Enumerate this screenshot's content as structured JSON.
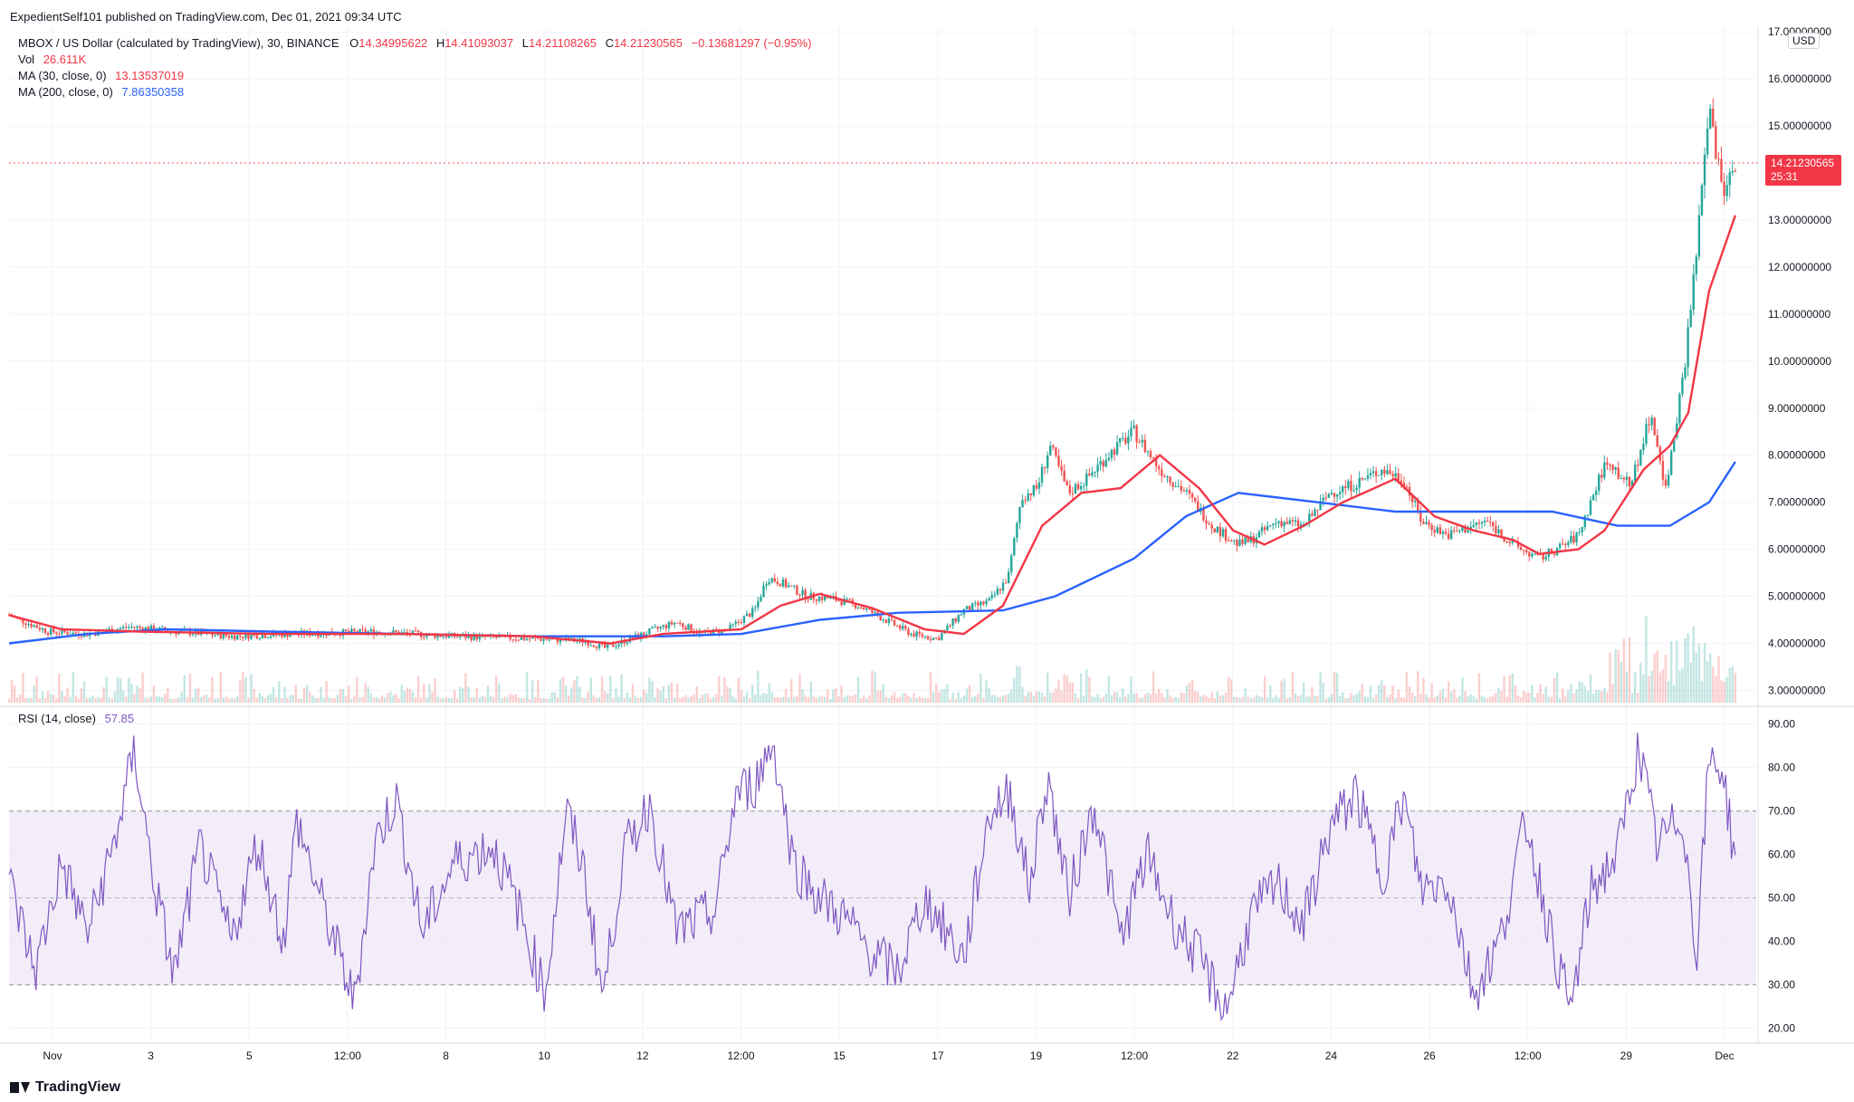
{
  "header": {
    "publisher_line": "ExpedientSelf101 published on TradingView.com, Dec 01, 2021 09:34 UTC",
    "symbol": "MBOX / US Dollar (calculated by TradingView), 30, BINANCE",
    "ohlc": {
      "o_label": "O",
      "o": "14.34995622",
      "h_label": "H",
      "h": "14.41093037",
      "l_label": "L",
      "l": "14.21108265",
      "c_label": "C",
      "c": "14.21230565",
      "change": "−0.13681297 (−0.95%)"
    },
    "vol_label": "Vol",
    "vol_value": "26.611K",
    "ma30_label": "MA (30, close, 0)",
    "ma30_value": "13.13537019",
    "ma200_label": "MA (200, close, 0)",
    "ma200_value": "7.86350358"
  },
  "rsi_header": {
    "label": "RSI (14, close)",
    "value": "57.85"
  },
  "currency_button": "USD",
  "last_price_tag": {
    "price": "14.21230565",
    "countdown": "25:31"
  },
  "brand": "TradingView",
  "colors": {
    "up": "#26a69a",
    "down": "#ef5350",
    "ma30": "#f23645",
    "ma200": "#2962ff",
    "rsi": "#7e57c2",
    "rsi_band": "#ede7f6",
    "grid": "#f0f3fa"
  },
  "chart_data": [
    {
      "type": "candlestick",
      "title": "MBOX / US Dollar (calculated by TradingView), 30, BINANCE",
      "y_axis": {
        "min": 2.7,
        "max": 17.1,
        "ticks": [
          "3.00000000",
          "4.00000000",
          "5.00000000",
          "6.00000000",
          "7.00000000",
          "8.00000000",
          "9.00000000",
          "10.00000000",
          "11.00000000",
          "12.00000000",
          "13.00000000",
          "15.00000000",
          "16.00000000",
          "17.00000000"
        ]
      },
      "x_axis": {
        "ticks": [
          "Nov",
          "3",
          "5",
          "12:00",
          "8",
          "10",
          "12",
          "12:00",
          "15",
          "17",
          "19",
          "12:00",
          "22",
          "24",
          "26",
          "12:00",
          "29",
          "Dec"
        ]
      },
      "last_price": 14.2123,
      "price_path": [
        {
          "x": 0,
          "y": 4.6
        },
        {
          "x": 1.5,
          "y": 4.25
        },
        {
          "x": 3,
          "y": 4.2
        },
        {
          "x": 4.6,
          "y": 4.35
        },
        {
          "x": 6.5,
          "y": 4.25
        },
        {
          "x": 8.5,
          "y": 4.15
        },
        {
          "x": 11,
          "y": 4.2
        },
        {
          "x": 14,
          "y": 4.25
        },
        {
          "x": 17,
          "y": 4.15
        },
        {
          "x": 20,
          "y": 4.1
        },
        {
          "x": 22,
          "y": 4.05
        },
        {
          "x": 22.8,
          "y": 3.9
        },
        {
          "x": 24.5,
          "y": 4.25
        },
        {
          "x": 25.5,
          "y": 4.45
        },
        {
          "x": 26.5,
          "y": 4.2
        },
        {
          "x": 27.5,
          "y": 4.3
        },
        {
          "x": 28.5,
          "y": 4.7
        },
        {
          "x": 29,
          "y": 5.4
        },
        {
          "x": 29.5,
          "y": 5.3
        },
        {
          "x": 30.5,
          "y": 5.0
        },
        {
          "x": 31.5,
          "y": 4.95
        },
        {
          "x": 32.5,
          "y": 4.8
        },
        {
          "x": 33.5,
          "y": 4.5
        },
        {
          "x": 34.5,
          "y": 4.2
        },
        {
          "x": 35.5,
          "y": 4.1
        },
        {
          "x": 36.5,
          "y": 4.7
        },
        {
          "x": 37.5,
          "y": 4.9
        },
        {
          "x": 38.2,
          "y": 5.4
        },
        {
          "x": 38.7,
          "y": 7.1
        },
        {
          "x": 39.3,
          "y": 7.3
        },
        {
          "x": 39.8,
          "y": 8.2
        },
        {
          "x": 40.5,
          "y": 7.2
        },
        {
          "x": 41.2,
          "y": 7.5
        },
        {
          "x": 42,
          "y": 8.0
        },
        {
          "x": 43,
          "y": 8.5
        },
        {
          "x": 44,
          "y": 7.7
        },
        {
          "x": 45,
          "y": 7.2
        },
        {
          "x": 46,
          "y": 6.5
        },
        {
          "x": 47,
          "y": 6.1
        },
        {
          "x": 47.5,
          "y": 6.2
        },
        {
          "x": 48.5,
          "y": 6.6
        },
        {
          "x": 49.5,
          "y": 6.5
        },
        {
          "x": 50.5,
          "y": 7.2
        },
        {
          "x": 51.5,
          "y": 7.4
        },
        {
          "x": 52.5,
          "y": 7.7
        },
        {
          "x": 53.3,
          "y": 7.5
        },
        {
          "x": 54,
          "y": 6.6
        },
        {
          "x": 55,
          "y": 6.3
        },
        {
          "x": 56.5,
          "y": 6.6
        },
        {
          "x": 57.5,
          "y": 6.1
        },
        {
          "x": 58.5,
          "y": 5.8
        },
        {
          "x": 59.5,
          "y": 6.1
        },
        {
          "x": 60,
          "y": 6.3
        },
        {
          "x": 61,
          "y": 7.8
        },
        {
          "x": 62,
          "y": 7.4
        },
        {
          "x": 62.8,
          "y": 8.9
        },
        {
          "x": 63.3,
          "y": 7.2
        },
        {
          "x": 64,
          "y": 9.6
        },
        {
          "x": 64.5,
          "y": 12.2
        },
        {
          "x": 65,
          "y": 15.4
        },
        {
          "x": 65.5,
          "y": 13.6
        },
        {
          "x": 66,
          "y": 14.2
        }
      ],
      "ma30": [
        {
          "x": 0,
          "y": 4.6
        },
        {
          "x": 2,
          "y": 4.3
        },
        {
          "x": 5,
          "y": 4.25
        },
        {
          "x": 10,
          "y": 4.2
        },
        {
          "x": 15,
          "y": 4.2
        },
        {
          "x": 20,
          "y": 4.15
        },
        {
          "x": 23,
          "y": 4.0
        },
        {
          "x": 25,
          "y": 4.2
        },
        {
          "x": 28,
          "y": 4.3
        },
        {
          "x": 29.5,
          "y": 4.8
        },
        {
          "x": 31,
          "y": 5.05
        },
        {
          "x": 33,
          "y": 4.75
        },
        {
          "x": 35,
          "y": 4.3
        },
        {
          "x": 36.5,
          "y": 4.2
        },
        {
          "x": 38,
          "y": 4.8
        },
        {
          "x": 39.5,
          "y": 6.5
        },
        {
          "x": 41,
          "y": 7.2
        },
        {
          "x": 42.5,
          "y": 7.3
        },
        {
          "x": 44,
          "y": 8.0
        },
        {
          "x": 45.5,
          "y": 7.3
        },
        {
          "x": 46.8,
          "y": 6.4
        },
        {
          "x": 48,
          "y": 6.1
        },
        {
          "x": 49.5,
          "y": 6.5
        },
        {
          "x": 51,
          "y": 7.0
        },
        {
          "x": 53,
          "y": 7.5
        },
        {
          "x": 54.5,
          "y": 6.7
        },
        {
          "x": 56,
          "y": 6.4
        },
        {
          "x": 57.5,
          "y": 6.2
        },
        {
          "x": 58.5,
          "y": 5.9
        },
        {
          "x": 60,
          "y": 6.0
        },
        {
          "x": 61,
          "y": 6.4
        },
        {
          "x": 62.5,
          "y": 7.7
        },
        {
          "x": 63.5,
          "y": 8.2
        },
        {
          "x": 64.2,
          "y": 8.9
        },
        {
          "x": 65,
          "y": 11.5
        },
        {
          "x": 66,
          "y": 13.1
        }
      ],
      "ma200": [
        {
          "x": 0,
          "y": 4.0
        },
        {
          "x": 3,
          "y": 4.2
        },
        {
          "x": 6,
          "y": 4.3
        },
        {
          "x": 10,
          "y": 4.25
        },
        {
          "x": 15,
          "y": 4.2
        },
        {
          "x": 20,
          "y": 4.15
        },
        {
          "x": 25,
          "y": 4.15
        },
        {
          "x": 28,
          "y": 4.2
        },
        {
          "x": 31,
          "y": 4.5
        },
        {
          "x": 34,
          "y": 4.65
        },
        {
          "x": 38,
          "y": 4.7
        },
        {
          "x": 40,
          "y": 5.0
        },
        {
          "x": 43,
          "y": 5.8
        },
        {
          "x": 45,
          "y": 6.7
        },
        {
          "x": 47,
          "y": 7.2
        },
        {
          "x": 50,
          "y": 7.0
        },
        {
          "x": 53,
          "y": 6.8
        },
        {
          "x": 56,
          "y": 6.8
        },
        {
          "x": 59,
          "y": 6.8
        },
        {
          "x": 61.5,
          "y": 6.5
        },
        {
          "x": 63.5,
          "y": 6.5
        },
        {
          "x": 65,
          "y": 7.0
        },
        {
          "x": 66,
          "y": 7.86
        }
      ]
    },
    {
      "type": "line",
      "title": "RSI (14, close)",
      "y_axis": {
        "min": 17,
        "max": 92,
        "ticks": [
          "20.00",
          "30.00",
          "40.00",
          "50.00",
          "60.00",
          "70.00",
          "80.00",
          "90.00"
        ]
      },
      "bands": {
        "upper": 70,
        "middle": 50,
        "lower": 30
      },
      "last_value": 57.85,
      "rsi_path": [
        {
          "x": 0,
          "y": 54
        },
        {
          "x": 1,
          "y": 33
        },
        {
          "x": 2,
          "y": 58
        },
        {
          "x": 3,
          "y": 42
        },
        {
          "x": 4,
          "y": 62
        },
        {
          "x": 4.8,
          "y": 84
        },
        {
          "x": 5.5,
          "y": 55
        },
        {
          "x": 6.3,
          "y": 32
        },
        {
          "x": 7.3,
          "y": 62
        },
        {
          "x": 8.5,
          "y": 40
        },
        {
          "x": 9.5,
          "y": 63
        },
        {
          "x": 10.5,
          "y": 40
        },
        {
          "x": 11,
          "y": 68
        },
        {
          "x": 12,
          "y": 48
        },
        {
          "x": 13.2,
          "y": 26
        },
        {
          "x": 14,
          "y": 63
        },
        {
          "x": 14.8,
          "y": 73
        },
        {
          "x": 15.8,
          "y": 42
        },
        {
          "x": 17,
          "y": 58
        },
        {
          "x": 18.5,
          "y": 62
        },
        {
          "x": 19.5,
          "y": 47
        },
        {
          "x": 20.5,
          "y": 28
        },
        {
          "x": 21.3,
          "y": 70
        },
        {
          "x": 22,
          "y": 56
        },
        {
          "x": 22.7,
          "y": 27
        },
        {
          "x": 23.5,
          "y": 60
        },
        {
          "x": 24.5,
          "y": 72
        },
        {
          "x": 25.5,
          "y": 42
        },
        {
          "x": 27,
          "y": 47
        },
        {
          "x": 27.8,
          "y": 74
        },
        {
          "x": 28.5,
          "y": 76
        },
        {
          "x": 29.2,
          "y": 86
        },
        {
          "x": 30,
          "y": 58
        },
        {
          "x": 31,
          "y": 50
        },
        {
          "x": 32,
          "y": 45
        },
        {
          "x": 33,
          "y": 37
        },
        {
          "x": 34,
          "y": 33
        },
        {
          "x": 35,
          "y": 50
        },
        {
          "x": 36.5,
          "y": 36
        },
        {
          "x": 37.5,
          "y": 70
        },
        {
          "x": 38.3,
          "y": 74
        },
        {
          "x": 39,
          "y": 52
        },
        {
          "x": 39.7,
          "y": 78
        },
        {
          "x": 40.5,
          "y": 50
        },
        {
          "x": 41.5,
          "y": 72
        },
        {
          "x": 42.5,
          "y": 40
        },
        {
          "x": 43.5,
          "y": 60
        },
        {
          "x": 44.5,
          "y": 45
        },
        {
          "x": 45.5,
          "y": 36
        },
        {
          "x": 46.5,
          "y": 24
        },
        {
          "x": 47.5,
          "y": 46
        },
        {
          "x": 48.5,
          "y": 53
        },
        {
          "x": 49.5,
          "y": 44
        },
        {
          "x": 50.5,
          "y": 66
        },
        {
          "x": 51.5,
          "y": 74
        },
        {
          "x": 52.5,
          "y": 55
        },
        {
          "x": 53.3,
          "y": 73
        },
        {
          "x": 54,
          "y": 52
        },
        {
          "x": 55,
          "y": 54
        },
        {
          "x": 56,
          "y": 28
        },
        {
          "x": 57,
          "y": 40
        },
        {
          "x": 58,
          "y": 68
        },
        {
          "x": 59,
          "y": 40
        },
        {
          "x": 59.7,
          "y": 24
        },
        {
          "x": 60.5,
          "y": 52
        },
        {
          "x": 61.5,
          "y": 60
        },
        {
          "x": 62.3,
          "y": 85
        },
        {
          "x": 63,
          "y": 62
        },
        {
          "x": 64,
          "y": 69
        },
        {
          "x": 64.5,
          "y": 36
        },
        {
          "x": 65,
          "y": 82
        },
        {
          "x": 65.5,
          "y": 80
        },
        {
          "x": 66,
          "y": 58
        }
      ]
    }
  ]
}
